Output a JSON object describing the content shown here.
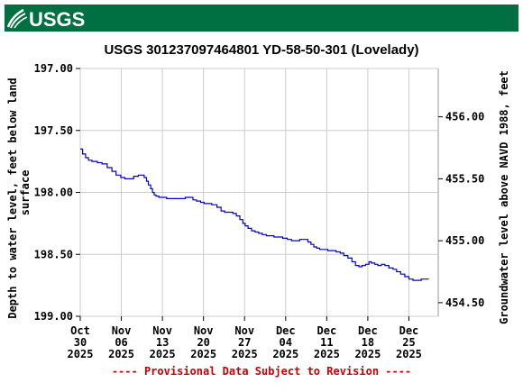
{
  "header": {
    "logo_text": "USGS",
    "band_color": "#006f41"
  },
  "footer": {
    "text": "---- Provisional Data Subject to Revision ----",
    "color": "#cc0000"
  },
  "chart_data": {
    "type": "line",
    "title": "USGS 301237097464801 YD-58-50-301 (Lovelady)",
    "ylabel_left": "Depth to water level, feet below land surface",
    "ylabel_left_lines": [
      "Depth to water level, feet below land",
      "surface"
    ],
    "ylabel_right": "Groundwater level above NAVD 1988, feet",
    "y_left_range": [
      197.0,
      199.0
    ],
    "y_left_inverted": true,
    "y_left_ticks": [
      "197.00",
      "197.50",
      "198.00",
      "198.50",
      "199.00"
    ],
    "y_right_range": [
      456.39,
      454.39
    ],
    "y_right_ticks": [
      "456.00",
      "455.50",
      "455.00",
      "454.50"
    ],
    "y_right_tick_values": [
      456.0,
      455.5,
      455.0,
      454.5
    ],
    "x_range_days": [
      0,
      61
    ],
    "x_ticks": [
      {
        "day": 0,
        "lines": [
          "Oct",
          "30",
          "2025"
        ]
      },
      {
        "day": 7,
        "lines": [
          "Nov",
          "06",
          "2025"
        ]
      },
      {
        "day": 14,
        "lines": [
          "Nov",
          "13",
          "2025"
        ]
      },
      {
        "day": 21,
        "lines": [
          "Nov",
          "20",
          "2025"
        ]
      },
      {
        "day": 28,
        "lines": [
          "Nov",
          "27",
          "2025"
        ]
      },
      {
        "day": 35,
        "lines": [
          "Dec",
          "04",
          "2025"
        ]
      },
      {
        "day": 42,
        "lines": [
          "Dec",
          "11",
          "2025"
        ]
      },
      {
        "day": 49,
        "lines": [
          "Dec",
          "18",
          "2025"
        ]
      },
      {
        "day": 56,
        "lines": [
          "Dec",
          "25",
          "2025"
        ]
      }
    ],
    "grid": true,
    "series": [
      {
        "color": "#0000cc",
        "x": [
          0.0,
          0.4,
          0.9,
          1.4,
          2.0,
          2.9,
          3.7,
          4.6,
          5.4,
          6.1,
          6.9,
          7.6,
          8.3,
          9.1,
          9.9,
          10.4,
          10.9,
          11.3,
          11.6,
          12.0,
          12.3,
          12.6,
          12.9,
          13.4,
          14.0,
          14.7,
          15.4,
          16.6,
          17.9,
          18.9,
          19.2,
          19.8,
          20.5,
          21.1,
          21.7,
          22.4,
          23.3,
          24.0,
          24.6,
          25.3,
          26.0,
          26.6,
          27.2,
          27.7,
          28.1,
          28.6,
          29.2,
          29.8,
          30.4,
          31.0,
          31.7,
          32.4,
          33.0,
          33.8,
          34.5,
          35.3,
          36.0,
          36.7,
          37.4,
          38.1,
          38.8,
          39.3,
          39.8,
          40.3,
          40.8,
          41.5,
          42.2,
          42.9,
          43.6,
          44.3,
          44.9,
          45.6,
          46.3,
          46.9,
          47.5,
          48.0,
          48.6,
          49.2,
          49.6,
          50.2,
          50.7,
          51.3,
          51.9,
          52.6,
          53.3,
          53.9,
          54.6,
          55.3,
          56.0,
          56.7,
          57.4,
          58.1,
          58.8,
          59.4
        ],
        "y": [
          197.65,
          197.69,
          197.72,
          197.74,
          197.75,
          197.76,
          197.77,
          197.8,
          197.83,
          197.86,
          197.88,
          197.89,
          197.89,
          197.87,
          197.86,
          197.86,
          197.88,
          197.91,
          197.94,
          197.97,
          198.0,
          198.02,
          198.03,
          198.04,
          198.04,
          198.05,
          198.05,
          198.05,
          198.04,
          198.04,
          198.06,
          198.07,
          198.08,
          198.09,
          198.09,
          198.1,
          198.12,
          198.15,
          198.16,
          198.16,
          198.17,
          198.19,
          198.22,
          198.25,
          198.27,
          198.29,
          198.31,
          198.32,
          198.33,
          198.34,
          198.35,
          198.35,
          198.36,
          198.36,
          198.37,
          198.38,
          198.39,
          198.39,
          198.38,
          198.38,
          198.4,
          198.42,
          198.44,
          198.45,
          198.46,
          198.46,
          198.47,
          198.47,
          198.48,
          198.49,
          198.51,
          198.53,
          198.56,
          198.59,
          198.6,
          198.59,
          198.58,
          198.56,
          198.57,
          198.58,
          198.59,
          198.58,
          198.59,
          198.61,
          198.62,
          198.64,
          198.66,
          198.68,
          198.7,
          198.71,
          198.71,
          198.7,
          198.7,
          198.7
        ]
      }
    ]
  }
}
